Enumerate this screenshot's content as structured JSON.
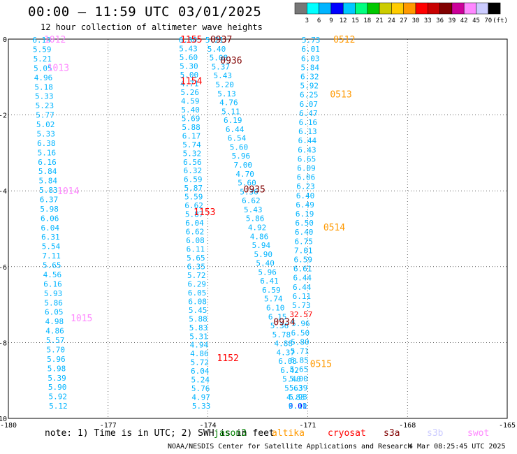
{
  "header": {
    "title": "00:00 – 11:59 UTC 03/01/2025",
    "subtitle": "12 hour collection of altimeter wave heights"
  },
  "colorbar": {
    "colors": [
      "#777777",
      "#00ffff",
      "#00b4ff",
      "#0000ff",
      "#00c8ff",
      "#00ff80",
      "#00c800",
      "#cccc00",
      "#ffcc00",
      "#ff9900",
      "#ff0000",
      "#c80000",
      "#800000",
      "#cc0099",
      "#ff88ff",
      "#ccccff",
      "#000000"
    ],
    "labels": [
      "3",
      "6",
      "9",
      "12",
      "15",
      "18",
      "21",
      "24",
      "27",
      "30",
      "33",
      "36",
      "39",
      "42",
      "45",
      "70",
      "(ft)"
    ]
  },
  "footer": {
    "note": "note: 1) Time is in UTC; 2) SWH is in feet",
    "legend": [
      {
        "name": "jason3",
        "color": "#008000"
      },
      {
        "name": "altika",
        "color": "#ff9900"
      },
      {
        "name": "cryosat",
        "color": "#ff0000"
      },
      {
        "name": "s3a",
        "color": "#800000"
      },
      {
        "name": "s3b",
        "color": "#ccccff"
      },
      {
        "name": "swot",
        "color": "#ff88ff"
      }
    ],
    "credit": "NOAA/NESDIS Center for Satellite Applications and Research",
    "timestamp": "4 Mar 08:25:45 UTC 2025"
  },
  "chart_data": {
    "type": "scatter",
    "title": "00:00 – 11:59 UTC 03/01/2025",
    "xlim": [
      -180,
      -165
    ],
    "ylim": [
      -10,
      0
    ],
    "x_ticks": [
      "-180",
      "-177",
      "-174",
      "-171",
      "-168",
      "-165"
    ],
    "y_ticks": [
      "0",
      "-2",
      "-4",
      "-6",
      "-8",
      "-10"
    ],
    "grid": true,
    "value_color": "#00b4ff",
    "tracks": [
      {
        "x0": -179.0,
        "x1": -178.5,
        "color": "#00b4ff",
        "values": [
          "6.19",
          "5.59",
          "5.21",
          "5.05",
          "4.96",
          "5.18",
          "5.33",
          "5.23",
          "5.77",
          "5.02",
          "5.33",
          "6.38",
          "5.16",
          "6.16",
          "5.84",
          "5.84",
          "5.83",
          "6.37",
          "5.98",
          "6.06",
          "6.04",
          "6.31",
          "5.54",
          "7.11",
          "5.65",
          "4.56",
          "6.16",
          "5.93",
          "5.86",
          "6.05",
          "4.98",
          "4.86",
          "5.57",
          "5.70",
          "5.96",
          "5.98",
          "5.39",
          "5.90",
          "5.92",
          "5.12"
        ]
      },
      {
        "x0": -174.6,
        "x1": -174.2,
        "color": "#00b4ff",
        "values": [
          "6.00",
          "5.43",
          "5.60",
          "5.30",
          "5.00",
          "4.71",
          "5.26",
          "4.59",
          "5.40",
          "5.69",
          "5.88",
          "6.17",
          "5.74",
          "5.32",
          "6.56",
          "6.32",
          "6.59",
          "5.87",
          "5.59",
          "6.62",
          "5.87",
          "6.04",
          "6.62",
          "6.08",
          "6.11",
          "5.65",
          "6.35",
          "5.72",
          "6.29",
          "6.05",
          "6.08",
          "5.45",
          "5.88",
          "5.83",
          "5.31",
          "4.94",
          "4.86",
          "5.72",
          "6.04",
          "5.24",
          "5.76",
          "4.97",
          "5.33"
        ]
      },
      {
        "x0": -173.8,
        "x1": -171.3,
        "color": "#00b4ff",
        "values": [
          "5.21",
          "5.40",
          "5.08",
          "5.37",
          "5.43",
          "5.20",
          "5.13",
          "4.76",
          "5.11",
          "6.19",
          "6.44",
          "6.54",
          "5.60",
          "5.96",
          "7.00",
          "4.70",
          "5.60",
          "5.36",
          "6.62",
          "5.43",
          "5.86",
          "4.92",
          "4.86",
          "5.94",
          "5.90",
          "5.40",
          "5.96",
          "6.41",
          "6.59",
          "5.74",
          "6.10",
          "6.15",
          "5.36",
          "5.78",
          "4.88",
          "4.37",
          "6.08",
          "6.42",
          "5.40",
          "5.63",
          "4.83",
          "9.01"
        ]
      },
      {
        "x0": -170.9,
        "x1": -171.3,
        "color": "#00b4ff",
        "values": [
          "5.73",
          "6.01",
          "6.03",
          "5.84",
          "6.32",
          "5.92",
          "6.25",
          "6.07",
          "6.47",
          "6.16",
          "6.13",
          "6.44",
          "6.43",
          "6.65",
          "6.09",
          "6.06",
          "6.23",
          "6.40",
          "6.49",
          "6.19",
          "6.50",
          "6.40",
          "6.75",
          "7.01",
          "6.59",
          "6.61",
          "6.44",
          "6.44",
          "6.11",
          "5.73",
          "32.57",
          "5.96",
          "6.50",
          "5.80",
          "5.71",
          "6.85",
          "5.65",
          "5.00",
          "5.39",
          "5.93",
          "6.10"
        ]
      }
    ],
    "time_labels": [
      {
        "text": "1012",
        "x": -178.6,
        "y": 0,
        "sat": "swot"
      },
      {
        "text": "1013",
        "x": -178.5,
        "y": -0.75,
        "sat": "swot"
      },
      {
        "text": "1014",
        "x": -178.2,
        "y": -4.0,
        "sat": "swot"
      },
      {
        "text": "1015",
        "x": -177.8,
        "y": -7.35,
        "sat": "swot"
      },
      {
        "text": "1155",
        "x": -174.5,
        "y": 0,
        "sat": "cryosat"
      },
      {
        "text": "1154",
        "x": -174.5,
        "y": -1.1,
        "sat": "cryosat"
      },
      {
        "text": "1153",
        "x": -174.1,
        "y": -4.55,
        "sat": "cryosat"
      },
      {
        "text": "1152",
        "x": -173.4,
        "y": -8.4,
        "sat": "cryosat"
      },
      {
        "text": "0937",
        "x": -173.6,
        "y": 0,
        "sat": "s3a"
      },
      {
        "text": "0936",
        "x": -173.3,
        "y": -0.55,
        "sat": "s3a"
      },
      {
        "text": "0935",
        "x": -172.6,
        "y": -3.95,
        "sat": "s3a"
      },
      {
        "text": "0934",
        "x": -171.7,
        "y": -7.45,
        "sat": "s3a"
      },
      {
        "text": "0512",
        "x": -169.9,
        "y": 0,
        "sat": "altika"
      },
      {
        "text": "0513",
        "x": -170.0,
        "y": -1.45,
        "sat": "altika"
      },
      {
        "text": "0514",
        "x": -170.2,
        "y": -4.95,
        "sat": "altika"
      },
      {
        "text": "0515",
        "x": -170.6,
        "y": -8.55,
        "sat": "altika"
      }
    ],
    "series": [
      {
        "name": "jason3",
        "color": "#008000"
      },
      {
        "name": "altika",
        "color": "#ff9900"
      },
      {
        "name": "cryosat",
        "color": "#ff0000"
      },
      {
        "name": "s3a",
        "color": "#800000"
      },
      {
        "name": "s3b",
        "color": "#ccccff"
      },
      {
        "name": "swot",
        "color": "#ff88ff"
      }
    ]
  }
}
